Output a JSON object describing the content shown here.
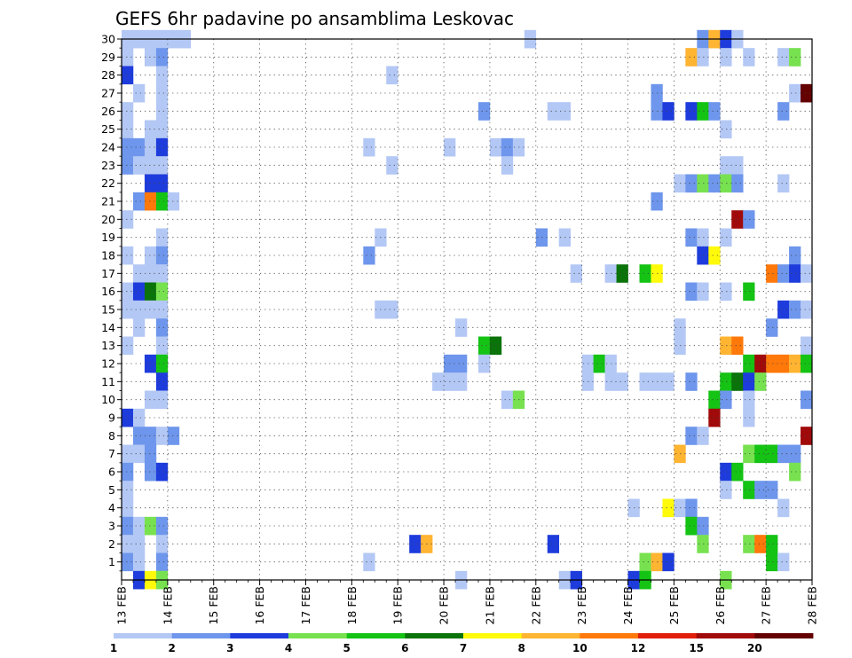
{
  "chart_data": {
    "type": "heatmap",
    "title": "GEFS 6hr padavine po ansamblima Leskovac",
    "xlabel": "",
    "ylabel": "",
    "x_tick_labels": [
      "13 FEB",
      "14 FEB",
      "15 FEB",
      "16 FEB",
      "17 FEB",
      "18 FEB",
      "19 FEB",
      "20 FEB",
      "21 FEB",
      "22 FEB",
      "23 FEB",
      "24 FEB",
      "25 FEB",
      "26 FEB",
      "27 FEB",
      "28 FEB"
    ],
    "y_range": [
      0,
      30
    ],
    "y_tick_labels": [
      "1",
      "2",
      "3",
      "4",
      "5",
      "6",
      "7",
      "8",
      "9",
      "10",
      "11",
      "12",
      "13",
      "14",
      "15",
      "16",
      "17",
      "18",
      "19",
      "20",
      "21",
      "22",
      "23",
      "24",
      "25",
      "26",
      "27",
      "28",
      "29",
      "30"
    ],
    "grid": true,
    "legend_placement": "bottom",
    "legend": {
      "labels": [
        "1",
        "2",
        "3",
        "4",
        "5",
        "6",
        "7",
        "8",
        "10",
        "12",
        "15",
        "20"
      ],
      "colors": [
        "#b4c8f5",
        "#6e96ec",
        "#1e3cdc",
        "#78e150",
        "#14c314",
        "#0a730a",
        "#fffa0a",
        "#ffb432",
        "#ff780a",
        "#e11e0a",
        "#a00a0a",
        "#640000"
      ]
    },
    "cells": [
      [
        13.0,
        30,
        1
      ],
      [
        13.25,
        30,
        1
      ],
      [
        13.5,
        30,
        1
      ],
      [
        13.75,
        30,
        1
      ],
      [
        14.0,
        30,
        1
      ],
      [
        14.25,
        30,
        1
      ],
      [
        21.75,
        30,
        1
      ],
      [
        25.5,
        30,
        2
      ],
      [
        25.75,
        30,
        8
      ],
      [
        26.0,
        30,
        3
      ],
      [
        26.25,
        30,
        1
      ],
      [
        13.0,
        29,
        1
      ],
      [
        13.5,
        29,
        1
      ],
      [
        13.75,
        29,
        2
      ],
      [
        25.25,
        29,
        8
      ],
      [
        25.5,
        29,
        1
      ],
      [
        26.0,
        29,
        1
      ],
      [
        26.5,
        29,
        1
      ],
      [
        27.25,
        29,
        1
      ],
      [
        27.5,
        29,
        4
      ],
      [
        13.0,
        28,
        3
      ],
      [
        13.75,
        28,
        1
      ],
      [
        18.75,
        28,
        1
      ],
      [
        13.25,
        27,
        1
      ],
      [
        13.75,
        27,
        1
      ],
      [
        24.5,
        27,
        2
      ],
      [
        27.5,
        27,
        1
      ],
      [
        27.75,
        27,
        20
      ],
      [
        13.0,
        26,
        1
      ],
      [
        13.75,
        26,
        1
      ],
      [
        20.75,
        26,
        2
      ],
      [
        22.25,
        26,
        1
      ],
      [
        22.5,
        26,
        1
      ],
      [
        24.5,
        26,
        2
      ],
      [
        24.75,
        26,
        3
      ],
      [
        25.25,
        26,
        3
      ],
      [
        25.5,
        26,
        5
      ],
      [
        25.75,
        26,
        2
      ],
      [
        27.25,
        26,
        2
      ],
      [
        13.0,
        25,
        1
      ],
      [
        13.5,
        25,
        1
      ],
      [
        13.75,
        25,
        1
      ],
      [
        26.0,
        25,
        1
      ],
      [
        13.0,
        24,
        2
      ],
      [
        13.25,
        24,
        2
      ],
      [
        13.5,
        24,
        1
      ],
      [
        13.75,
        24,
        3
      ],
      [
        18.25,
        24,
        1
      ],
      [
        20.0,
        24,
        1
      ],
      [
        21.0,
        24,
        1
      ],
      [
        21.25,
        24,
        2
      ],
      [
        21.5,
        24,
        1
      ],
      [
        13.0,
        23,
        2
      ],
      [
        13.25,
        23,
        1
      ],
      [
        13.5,
        23,
        1
      ],
      [
        13.75,
        23,
        1
      ],
      [
        18.75,
        23,
        1
      ],
      [
        21.25,
        23,
        1
      ],
      [
        26.0,
        23,
        1
      ],
      [
        26.25,
        23,
        1
      ],
      [
        13.5,
        22,
        3
      ],
      [
        13.75,
        22,
        3
      ],
      [
        25.0,
        22,
        1
      ],
      [
        25.25,
        22,
        2
      ],
      [
        25.5,
        22,
        4
      ],
      [
        25.75,
        22,
        2
      ],
      [
        26.0,
        22,
        4
      ],
      [
        26.25,
        22,
        2
      ],
      [
        27.25,
        22,
        1
      ],
      [
        13.25,
        21,
        2
      ],
      [
        13.5,
        21,
        10
      ],
      [
        13.75,
        21,
        5
      ],
      [
        14.0,
        21,
        1
      ],
      [
        24.5,
        21,
        2
      ],
      [
        13.0,
        20,
        1
      ],
      [
        26.25,
        20,
        15
      ],
      [
        26.5,
        20,
        2
      ],
      [
        13.75,
        19,
        1
      ],
      [
        18.5,
        19,
        1
      ],
      [
        22.0,
        19,
        2
      ],
      [
        22.5,
        19,
        1
      ],
      [
        25.25,
        19,
        2
      ],
      [
        25.5,
        19,
        1
      ],
      [
        26.0,
        19,
        1
      ],
      [
        13.0,
        18,
        1
      ],
      [
        13.5,
        18,
        1
      ],
      [
        13.75,
        18,
        2
      ],
      [
        18.25,
        18,
        2
      ],
      [
        25.5,
        18,
        3
      ],
      [
        25.75,
        18,
        7
      ],
      [
        27.5,
        18,
        2
      ],
      [
        13.25,
        17,
        1
      ],
      [
        13.5,
        17,
        1
      ],
      [
        13.75,
        17,
        1
      ],
      [
        22.75,
        17,
        1
      ],
      [
        23.5,
        17,
        1
      ],
      [
        23.75,
        17,
        6
      ],
      [
        24.25,
        17,
        5
      ],
      [
        24.5,
        17,
        7
      ],
      [
        27.0,
        17,
        10
      ],
      [
        27.25,
        17,
        2
      ],
      [
        27.5,
        17,
        3
      ],
      [
        27.75,
        17,
        1
      ],
      [
        13.0,
        16,
        1
      ],
      [
        13.25,
        16,
        3
      ],
      [
        13.5,
        16,
        6
      ],
      [
        13.75,
        16,
        4
      ],
      [
        25.25,
        16,
        2
      ],
      [
        25.5,
        16,
        1
      ],
      [
        26.0,
        16,
        1
      ],
      [
        26.5,
        16,
        5
      ],
      [
        13.0,
        15,
        1
      ],
      [
        13.25,
        15,
        1
      ],
      [
        13.5,
        15,
        1
      ],
      [
        13.75,
        15,
        1
      ],
      [
        18.5,
        15,
        1
      ],
      [
        18.75,
        15,
        1
      ],
      [
        27.25,
        15,
        3
      ],
      [
        27.5,
        15,
        2
      ],
      [
        27.75,
        15,
        1
      ],
      [
        13.25,
        14,
        1
      ],
      [
        13.75,
        14,
        2
      ],
      [
        20.25,
        14,
        1
      ],
      [
        25.0,
        14,
        1
      ],
      [
        27.0,
        14,
        2
      ],
      [
        13.0,
        13,
        1
      ],
      [
        13.75,
        13,
        1
      ],
      [
        20.75,
        13,
        5
      ],
      [
        21.0,
        13,
        6
      ],
      [
        25.0,
        13,
        1
      ],
      [
        26.0,
        13,
        8
      ],
      [
        26.25,
        13,
        10
      ],
      [
        27.75,
        13,
        1
      ],
      [
        13.5,
        12,
        3
      ],
      [
        13.75,
        12,
        5
      ],
      [
        20.0,
        12,
        2
      ],
      [
        20.25,
        12,
        2
      ],
      [
        20.75,
        12,
        1
      ],
      [
        23.0,
        12,
        1
      ],
      [
        23.25,
        12,
        5
      ],
      [
        23.5,
        12,
        1
      ],
      [
        26.5,
        12,
        5
      ],
      [
        26.75,
        12,
        15
      ],
      [
        27.0,
        12,
        10
      ],
      [
        27.25,
        12,
        10
      ],
      [
        27.5,
        12,
        8
      ],
      [
        27.75,
        12,
        5
      ],
      [
        13.75,
        11,
        3
      ],
      [
        19.75,
        11,
        1
      ],
      [
        20.0,
        11,
        1
      ],
      [
        20.25,
        11,
        1
      ],
      [
        23.0,
        11,
        1
      ],
      [
        23.5,
        11,
        1
      ],
      [
        23.75,
        11,
        1
      ],
      [
        24.25,
        11,
        1
      ],
      [
        24.5,
        11,
        1
      ],
      [
        24.75,
        11,
        1
      ],
      [
        25.25,
        11,
        2
      ],
      [
        26.0,
        11,
        5
      ],
      [
        26.25,
        11,
        6
      ],
      [
        26.5,
        11,
        3
      ],
      [
        26.75,
        11,
        4
      ],
      [
        13.5,
        10,
        1
      ],
      [
        13.75,
        10,
        1
      ],
      [
        21.25,
        10,
        1
      ],
      [
        21.5,
        10,
        4
      ],
      [
        25.75,
        10,
        5
      ],
      [
        26.0,
        10,
        2
      ],
      [
        26.5,
        10,
        1
      ],
      [
        27.75,
        10,
        2
      ],
      [
        13.0,
        9,
        3
      ],
      [
        13.25,
        9,
        1
      ],
      [
        25.75,
        9,
        15
      ],
      [
        26.5,
        9,
        1
      ],
      [
        13.25,
        8,
        2
      ],
      [
        13.5,
        8,
        2
      ],
      [
        13.75,
        8,
        1
      ],
      [
        14.0,
        8,
        2
      ],
      [
        25.25,
        8,
        2
      ],
      [
        25.5,
        8,
        1
      ],
      [
        27.75,
        8,
        15
      ],
      [
        13.0,
        7,
        1
      ],
      [
        13.25,
        7,
        1
      ],
      [
        13.5,
        7,
        2
      ],
      [
        25.0,
        7,
        8
      ],
      [
        26.5,
        7,
        4
      ],
      [
        26.75,
        7,
        5
      ],
      [
        27.0,
        7,
        5
      ],
      [
        27.25,
        7,
        2
      ],
      [
        27.5,
        7,
        2
      ],
      [
        13.0,
        6,
        2
      ],
      [
        13.5,
        6,
        2
      ],
      [
        13.75,
        6,
        3
      ],
      [
        26.0,
        6,
        3
      ],
      [
        26.25,
        6,
        5
      ],
      [
        27.5,
        6,
        4
      ],
      [
        13.0,
        5,
        1
      ],
      [
        26.0,
        5,
        1
      ],
      [
        26.5,
        5,
        5
      ],
      [
        26.75,
        5,
        2
      ],
      [
        27.0,
        5,
        2
      ],
      [
        13.0,
        4,
        1
      ],
      [
        24.0,
        4,
        1
      ],
      [
        24.75,
        4,
        7
      ],
      [
        25.0,
        4,
        1
      ],
      [
        25.25,
        4,
        2
      ],
      [
        27.25,
        4,
        1
      ],
      [
        13.0,
        3,
        2
      ],
      [
        13.25,
        3,
        1
      ],
      [
        13.5,
        3,
        4
      ],
      [
        13.75,
        3,
        2
      ],
      [
        25.25,
        3,
        5
      ],
      [
        25.5,
        3,
        2
      ],
      [
        13.0,
        2,
        1
      ],
      [
        13.25,
        2,
        1
      ],
      [
        13.75,
        2,
        1
      ],
      [
        19.25,
        2,
        3
      ],
      [
        19.5,
        2,
        8
      ],
      [
        22.25,
        2,
        3
      ],
      [
        25.5,
        2,
        4
      ],
      [
        26.5,
        2,
        4
      ],
      [
        26.75,
        2,
        10
      ],
      [
        27.0,
        2,
        5
      ],
      [
        13.0,
        1,
        2
      ],
      [
        13.25,
        1,
        1
      ],
      [
        13.75,
        1,
        2
      ],
      [
        18.25,
        1,
        1
      ],
      [
        24.25,
        1,
        4
      ],
      [
        24.5,
        1,
        8
      ],
      [
        24.75,
        1,
        3
      ],
      [
        27.0,
        1,
        5
      ],
      [
        27.25,
        1,
        1
      ],
      [
        13.25,
        0,
        3
      ],
      [
        13.5,
        0,
        7
      ],
      [
        13.75,
        0,
        4
      ],
      [
        20.25,
        0,
        1
      ],
      [
        22.5,
        0,
        1
      ],
      [
        22.75,
        0,
        3
      ],
      [
        24.0,
        0,
        3
      ],
      [
        24.25,
        0,
        5
      ],
      [
        26.0,
        0,
        4
      ]
    ]
  }
}
